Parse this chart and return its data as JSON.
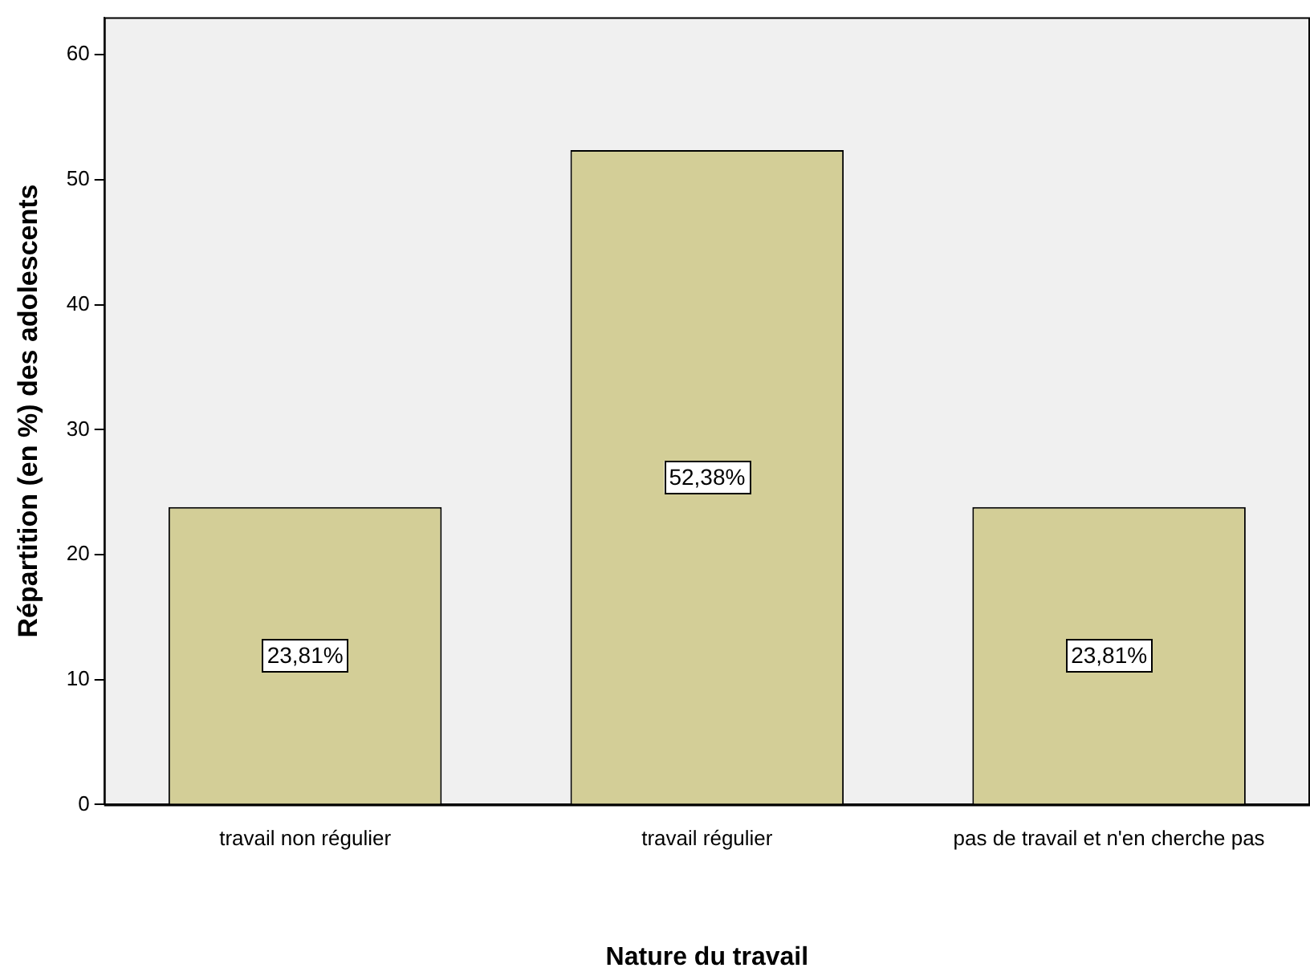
{
  "chart_data": {
    "type": "bar",
    "xlabel": "Nature du travail",
    "ylabel": "Répartition (en %) des adolescents",
    "categories": [
      "travail non régulier",
      "travail régulier",
      "pas de travail et n'en cherche pas"
    ],
    "values": [
      23.81,
      52.38,
      23.81
    ],
    "value_labels": [
      "23,81%",
      "52,38%",
      "23,81%"
    ],
    "color": "#d3ce97",
    "ylim": [
      0,
      63
    ],
    "yticks": [
      0,
      10,
      20,
      30,
      40,
      50,
      60
    ],
    "grid": false,
    "legend": false
  }
}
